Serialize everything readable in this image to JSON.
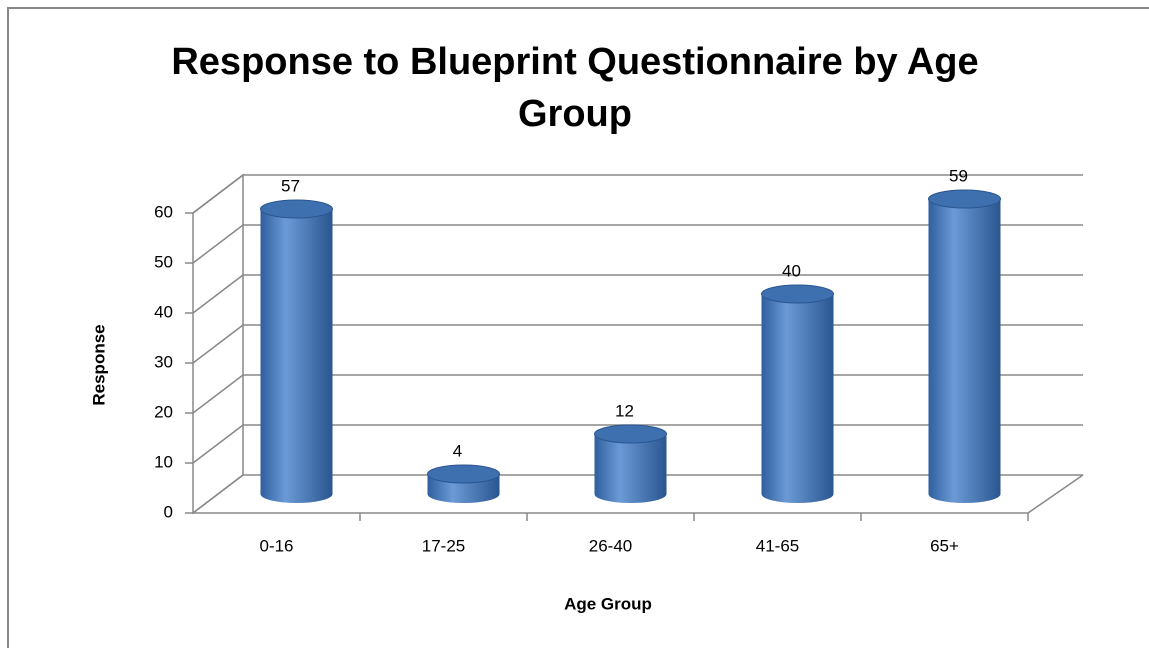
{
  "chart_data": {
    "type": "bar",
    "title": "Response to Blueprint Questionnaire by Age Group",
    "x_label": "Age Group",
    "y_label": "Response",
    "categories": [
      "0-16",
      "17-25",
      "26-40",
      "41-65",
      "65+"
    ],
    "values": [
      57,
      4,
      12,
      40,
      59
    ],
    "color": "#4a7ebb",
    "ylim": [
      0,
      60
    ],
    "yticks": [
      0,
      10,
      20,
      30,
      40,
      50,
      60
    ],
    "grid": true
  }
}
